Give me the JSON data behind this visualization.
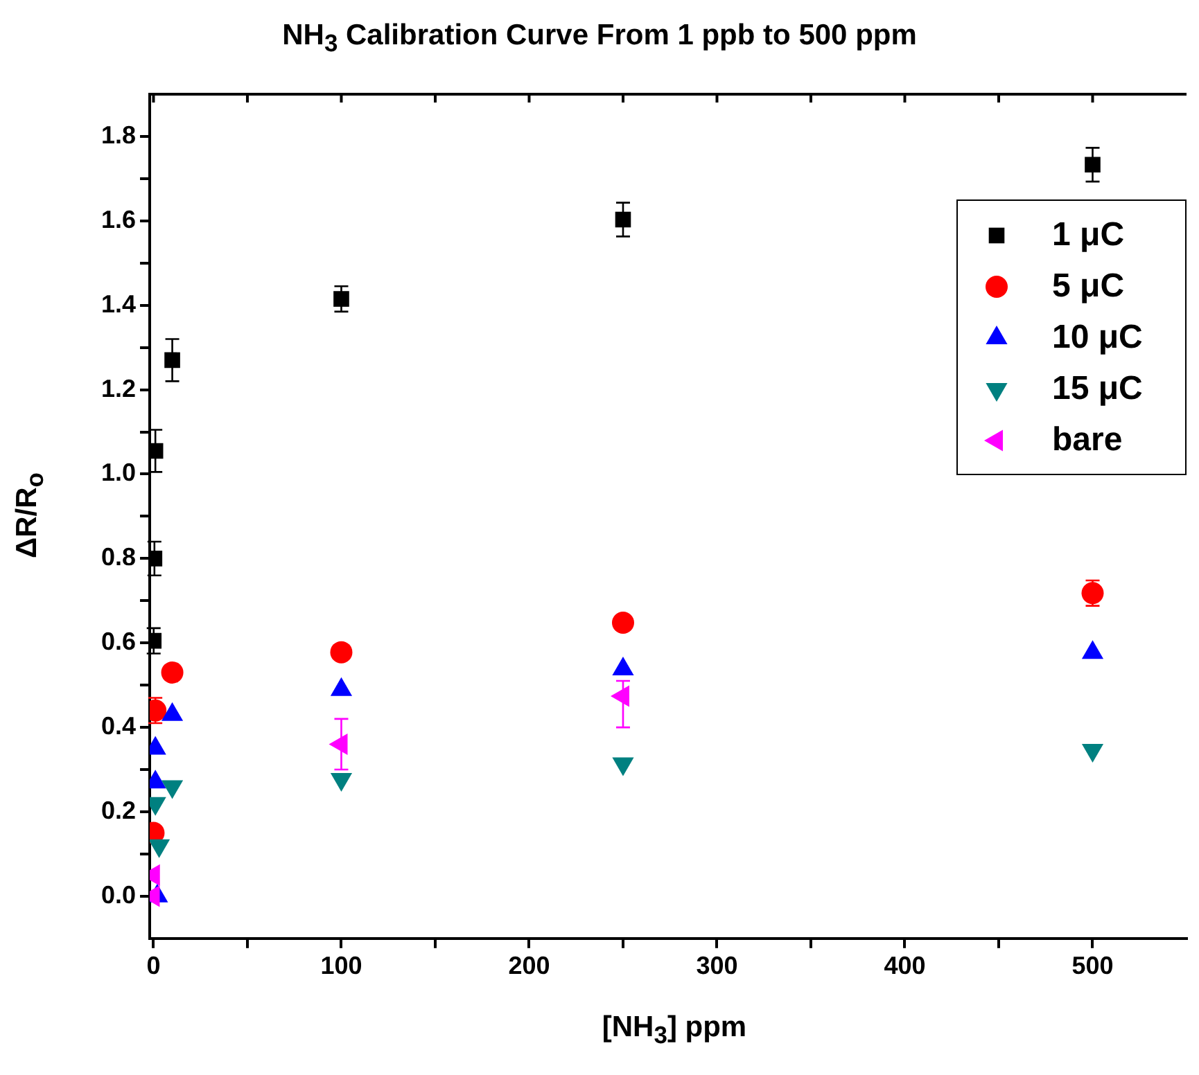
{
  "chart_data": {
    "type": "scatter",
    "title": "NH$_{3}$ Calibration Curve From 1 ppb to 500 ppm",
    "xlabel": "[NH$_{3}$] ppm",
    "ylabel": "ΔR/R$_{o}$",
    "xlim": [
      -2,
      550
    ],
    "ylim": [
      -0.1,
      1.9
    ],
    "xticks": [
      0,
      {
        "value": 50,
        "label": null
      },
      100,
      {
        "value": 150,
        "label": null
      },
      200,
      {
        "value": 250,
        "label": null
      },
      300,
      {
        "value": 350,
        "label": null
      },
      400,
      {
        "value": 450,
        "label": null
      },
      500
    ],
    "yticks": [
      {
        "value": 0,
        "label": "0.0"
      },
      {
        "value": 0.1,
        "label": null
      },
      {
        "value": 0.2,
        "label": "0.2"
      },
      {
        "value": 0.3,
        "label": null
      },
      {
        "value": 0.4,
        "label": "0.4"
      },
      {
        "value": 0.5,
        "label": null
      },
      {
        "value": 0.6,
        "label": "0.6"
      },
      {
        "value": 0.7,
        "label": null
      },
      {
        "value": 0.8,
        "label": "0.8"
      },
      {
        "value": 0.9,
        "label": null
      },
      {
        "value": 1,
        "label": "1.0"
      },
      {
        "value": 1.1,
        "label": null
      },
      {
        "value": 1.2,
        "label": "1.2"
      },
      {
        "value": 1.3,
        "label": null
      },
      {
        "value": 1.4,
        "label": "1.4"
      },
      {
        "value": 1.5,
        "label": null
      },
      {
        "value": 1.6,
        "label": "1.6"
      },
      {
        "value": 1.7,
        "label": null
      },
      {
        "value": 1.8,
        "label": "1.8"
      }
    ],
    "grid": false,
    "legend": "top right",
    "series": [
      {
        "name": "1 μC",
        "color": "#000000",
        "marker": "square",
        "x": [
          0.1,
          0.5,
          1,
          10,
          100,
          250,
          500
        ],
        "values": [
          0.605,
          0.8,
          1.055,
          1.27,
          1.415,
          1.603,
          1.733
        ],
        "errors": [
          0.03,
          0.04,
          0.05,
          0.05,
          0.03,
          0.04,
          0.04
        ]
      },
      {
        "name": "5 μC",
        "color": "#ff0000",
        "marker": "circle",
        "x": [
          0.001,
          1,
          10,
          100,
          250,
          500
        ],
        "values": [
          0.15,
          0.44,
          0.53,
          0.578,
          0.648,
          0.718
        ],
        "errors": [
          null,
          0.03,
          null,
          null,
          null,
          0.03
        ]
      },
      {
        "name": "10 μC",
        "color": "#0000ff",
        "marker": "triangle",
        "x": [
          2,
          1,
          1,
          10,
          100,
          250,
          500
        ],
        "values": [
          0.0,
          0.27,
          0.35,
          0.43,
          0.489,
          0.538,
          0.577
        ]
      },
      {
        "name": "15 μC",
        "color": "#008080",
        "marker": "triangle-down",
        "x": [
          3,
          1,
          10,
          100,
          250,
          500
        ],
        "values": [
          0.12,
          0.22,
          0.26,
          0.277,
          0.314,
          0.346
        ]
      },
      {
        "name": "bare",
        "color": "#ff00ff",
        "marker": "triangle-left",
        "x": [
          0.001,
          0.1,
          100,
          250
        ],
        "values": [
          0.0,
          0.05,
          0.36,
          0.474
        ],
        "errors": [
          null,
          null,
          [
            0.3,
            0.42
          ],
          [
            0.4,
            0.51
          ]
        ]
      }
    ]
  }
}
